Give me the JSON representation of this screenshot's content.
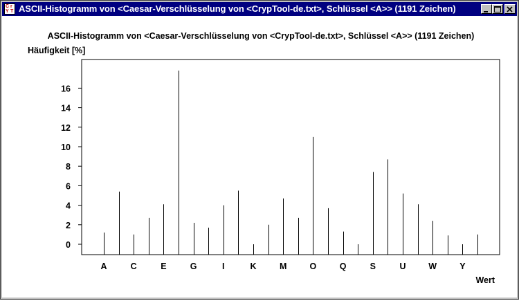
{
  "window": {
    "title": "ASCII-Histogramm von <Caesar-Verschlüsselung von <CrypTool-de.txt>, Schlüssel <A>> (1191 Zeichen)",
    "controls": [
      "minimize",
      "maximize",
      "close"
    ],
    "title_bar_color": "#000080"
  },
  "chart_data": {
    "type": "bar",
    "title": "ASCII-Histogramm von <Caesar-Verschlüsselung von <CrypTool-de.txt>, Schlüssel <A>> (1191 Zeichen)",
    "ylabel": "Häufigkeit [%]",
    "xlabel": "Wert",
    "ylim": [
      -1,
      18
    ],
    "yticks": [
      0,
      2,
      4,
      6,
      8,
      10,
      12,
      14,
      16
    ],
    "categories": [
      "A",
      "B",
      "C",
      "D",
      "E",
      "F",
      "G",
      "H",
      "I",
      "J",
      "K",
      "L",
      "M",
      "N",
      "O",
      "P",
      "Q",
      "R",
      "S",
      "T",
      "U",
      "V",
      "W",
      "X",
      "Y",
      "Z"
    ],
    "xtick_labels": [
      "A",
      "C",
      "E",
      "G",
      "I",
      "K",
      "M",
      "O",
      "Q",
      "S",
      "U",
      "W",
      "Y"
    ],
    "values": [
      1.2,
      5.4,
      1.0,
      2.7,
      4.1,
      17.8,
      2.2,
      1.7,
      4.0,
      5.5,
      0.0,
      2.0,
      4.7,
      2.7,
      11.0,
      3.7,
      1.3,
      0.0,
      7.4,
      8.7,
      5.2,
      4.1,
      2.4,
      0.9,
      0.0,
      1.0
    ],
    "grid": false
  }
}
